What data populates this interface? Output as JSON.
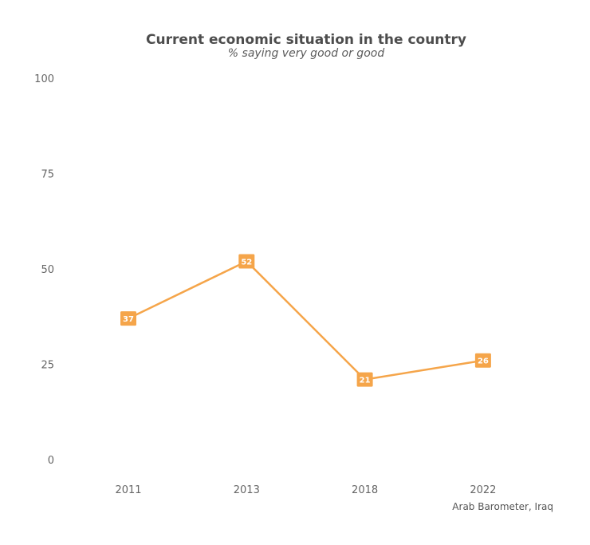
{
  "chart_data": {
    "type": "line",
    "title": "Current economic situation in the country",
    "subtitle": "% saying very good or good",
    "caption": "Arab Barometer, Iraq",
    "categories": [
      "2011",
      "2013",
      "2018",
      "2022"
    ],
    "series": [
      {
        "values": [
          37,
          52,
          21,
          26
        ],
        "color": "#f5a54a"
      }
    ],
    "ylim": [
      0,
      100
    ],
    "yticks": [
      0,
      25,
      50,
      75,
      100
    ],
    "grid": false,
    "data_labels": true
  }
}
